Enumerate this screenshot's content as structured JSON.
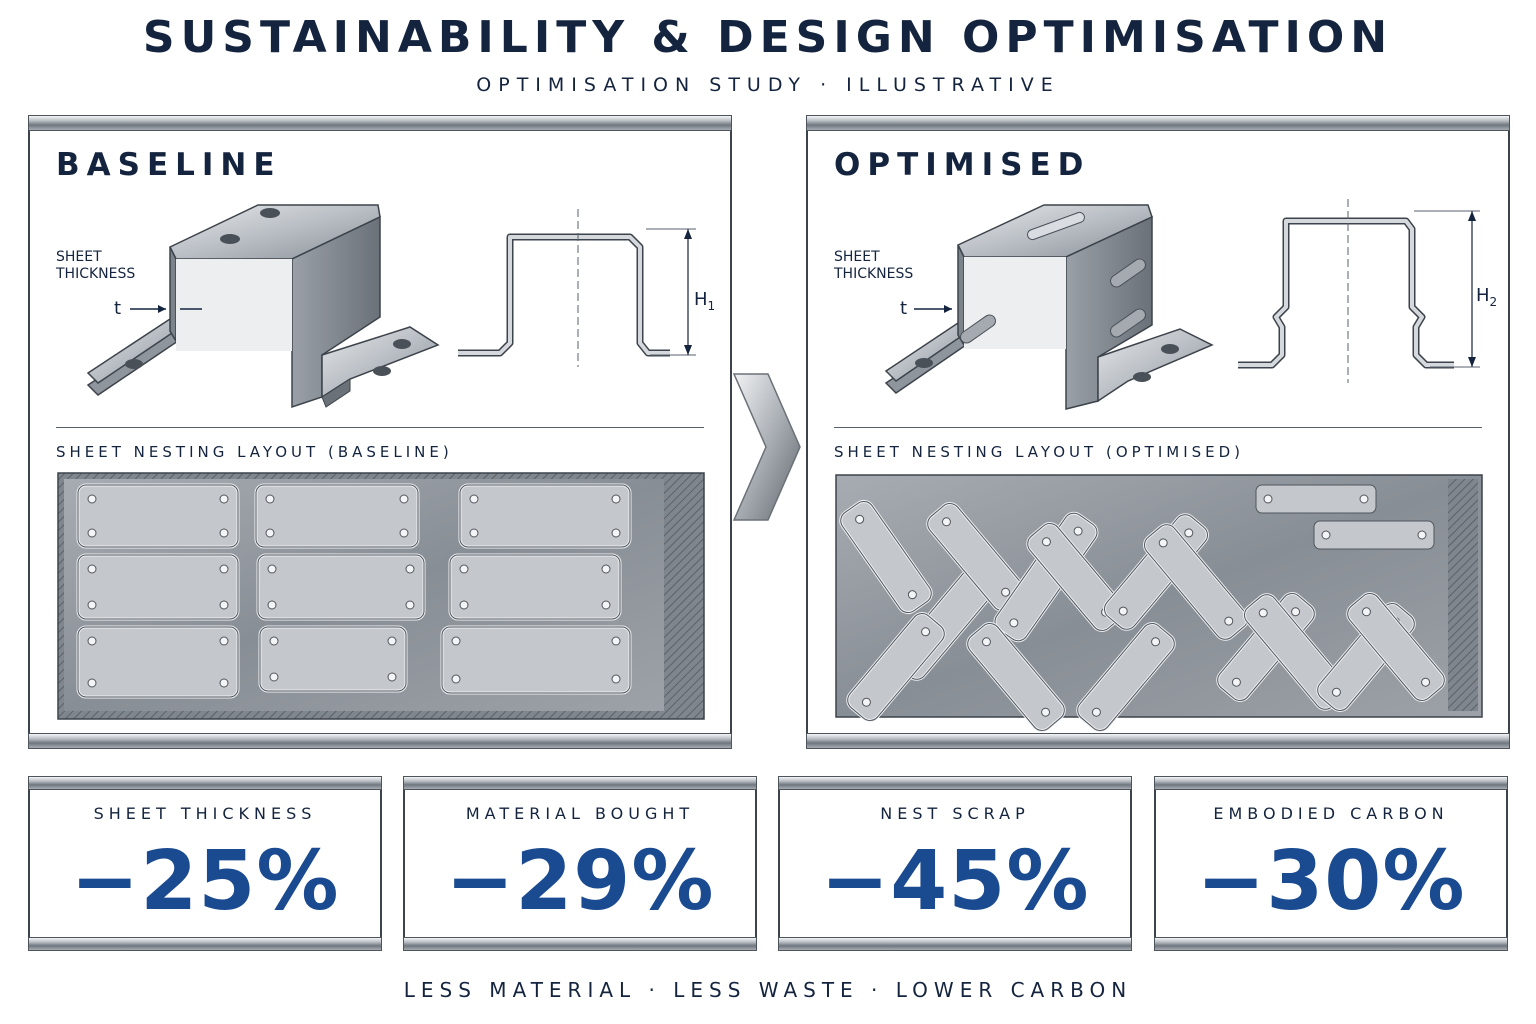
{
  "header": {
    "title": "SUSTAINABILITY & DESIGN OPTIMISATION",
    "subtitle": "OPTIMISATION STUDY  ·  ILLUSTRATIVE"
  },
  "baseline": {
    "title": "BASELINE",
    "thickness_label": "SHEET\nTHICKNESS",
    "t_label": "t",
    "height_label": "H",
    "height_sub": "1",
    "nest_label": "SHEET NESTING LAYOUT (BASELINE)"
  },
  "optimised": {
    "title": "OPTIMISED",
    "thickness_label": "SHEET\nTHICKNESS",
    "t_label": "t",
    "height_label": "H",
    "height_sub": "2",
    "nest_label": "SHEET NESTING LAYOUT (OPTIMISED)"
  },
  "stats": [
    {
      "label": "SHEET THICKNESS",
      "value": "−25%"
    },
    {
      "label": "MATERIAL BOUGHT",
      "value": "−29%"
    },
    {
      "label": "NEST SCRAP",
      "value": "−45%"
    },
    {
      "label": "EMBODIED CARBON",
      "value": "−30%"
    }
  ],
  "footer": "LESS MATERIAL · LESS WASTE · LOWER CARBON",
  "colors": {
    "navy": "#14243f",
    "accent_blue": "#1a4a90",
    "steel_light": "#c9cdd2",
    "steel_dark": "#6f767e"
  },
  "icons": [
    "chevron-right-icon"
  ]
}
